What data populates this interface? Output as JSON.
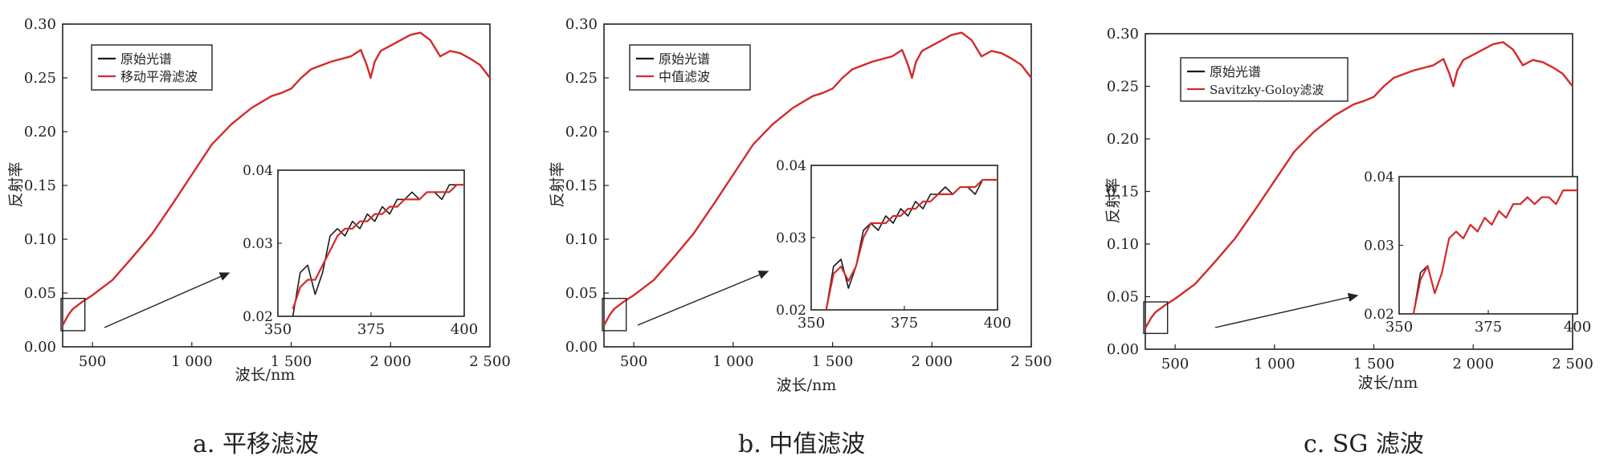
{
  "colors": {
    "original": "#1a1a1a",
    "filtered": "#d42a2a",
    "arrow": "#222222",
    "axis": "#222222"
  },
  "chart_data": [
    {
      "type": "line",
      "caption": "a. 平移滤波",
      "xlabel": "波长/nm",
      "ylabel": "反射率",
      "xlim": [
        350,
        2500
      ],
      "ylim": [
        0,
        0.3
      ],
      "xticks": [
        500,
        1000,
        1500,
        2000,
        2500
      ],
      "xtick_labels": [
        "500",
        "1 000",
        "1 500",
        "2 000",
        "2 500"
      ],
      "yticks": [
        0,
        0.05,
        0.1,
        0.15,
        0.2,
        0.25,
        0.3
      ],
      "ytick_labels": [
        "0.00",
        "0.05",
        "0.10",
        "0.15",
        "0.20",
        "0.25",
        "0.30"
      ],
      "legend": {
        "position": "top-left",
        "entries": [
          "原始光谱",
          "移动平滑滤波"
        ]
      },
      "series": [
        {
          "name": "原始光谱",
          "color": "#1a1a1a",
          "x": [
            350,
            380,
            400,
            450,
            500,
            600,
            700,
            800,
            900,
            1000,
            1100,
            1200,
            1300,
            1400,
            1450,
            1500,
            1550,
            1600,
            1700,
            1800,
            1850,
            1880,
            1900,
            1920,
            1950,
            2000,
            2100,
            2150,
            2200,
            2250,
            2300,
            2350,
            2400,
            2450,
            2500
          ],
          "y": [
            0.02,
            0.03,
            0.035,
            0.042,
            0.048,
            0.062,
            0.083,
            0.105,
            0.132,
            0.16,
            0.188,
            0.207,
            0.222,
            0.233,
            0.236,
            0.24,
            0.25,
            0.258,
            0.265,
            0.27,
            0.276,
            0.262,
            0.25,
            0.265,
            0.275,
            0.28,
            0.29,
            0.292,
            0.285,
            0.27,
            0.275,
            0.273,
            0.268,
            0.262,
            0.25
          ]
        },
        {
          "name": "移动平滑滤波",
          "color": "#d42a2a",
          "x": [
            350,
            380,
            400,
            450,
            500,
            600,
            700,
            800,
            900,
            1000,
            1100,
            1200,
            1300,
            1400,
            1450,
            1500,
            1550,
            1600,
            1700,
            1800,
            1850,
            1880,
            1900,
            1920,
            1950,
            2000,
            2100,
            2150,
            2200,
            2250,
            2300,
            2350,
            2400,
            2450,
            2500
          ],
          "y": [
            0.02,
            0.03,
            0.035,
            0.042,
            0.048,
            0.062,
            0.083,
            0.105,
            0.132,
            0.16,
            0.188,
            0.207,
            0.222,
            0.233,
            0.236,
            0.24,
            0.25,
            0.258,
            0.265,
            0.27,
            0.276,
            0.262,
            0.25,
            0.265,
            0.275,
            0.28,
            0.29,
            0.292,
            0.285,
            0.27,
            0.275,
            0.273,
            0.268,
            0.262,
            0.25
          ]
        }
      ],
      "inset": {
        "xlim": [
          350,
          400
        ],
        "ylim": [
          0.02,
          0.04
        ],
        "xticks": [
          350,
          375,
          400
        ],
        "yticks": [
          0.02,
          0.03,
          0.04
        ],
        "ytick_labels": [
          "0.02",
          "0.03",
          "0.04"
        ],
        "series": [
          {
            "name": "原始光谱",
            "color": "#1a1a1a",
            "x": [
              354,
              356,
              358,
              360,
              362,
              364,
              366,
              368,
              370,
              372,
              374,
              376,
              378,
              380,
              382,
              384,
              386,
              388,
              390,
              392,
              394,
              396,
              398,
              400
            ],
            "y": [
              0.02,
              0.026,
              0.027,
              0.023,
              0.026,
              0.031,
              0.032,
              0.031,
              0.033,
              0.032,
              0.034,
              0.033,
              0.035,
              0.034,
              0.036,
              0.036,
              0.037,
              0.036,
              0.037,
              0.037,
              0.036,
              0.038,
              0.038,
              0.038
            ]
          },
          {
            "name": "移动平滑滤波",
            "color": "#d42a2a",
            "x": [
              354,
              356,
              358,
              360,
              362,
              364,
              366,
              368,
              370,
              372,
              374,
              376,
              378,
              380,
              382,
              384,
              386,
              388,
              390,
              392,
              394,
              396,
              398,
              400
            ],
            "y": [
              0.021,
              0.024,
              0.025,
              0.025,
              0.027,
              0.029,
              0.031,
              0.032,
              0.032,
              0.033,
              0.033,
              0.034,
              0.034,
              0.035,
              0.035,
              0.036,
              0.036,
              0.036,
              0.037,
              0.037,
              0.037,
              0.037,
              0.038,
              0.038
            ]
          }
        ]
      }
    },
    {
      "type": "line",
      "caption": "b. 中值滤波",
      "xlabel": "波长/nm",
      "ylabel": "反射率",
      "xlim": [
        350,
        2500
      ],
      "ylim": [
        0,
        0.3
      ],
      "xticks": [
        500,
        1000,
        1500,
        2000,
        2500
      ],
      "xtick_labels": [
        "500",
        "1 000",
        "1 500",
        "2 000",
        "2 500"
      ],
      "yticks": [
        0,
        0.05,
        0.1,
        0.15,
        0.2,
        0.25,
        0.3
      ],
      "ytick_labels": [
        "0.00",
        "0.05",
        "0.10",
        "0.15",
        "0.20",
        "0.25",
        "0.30"
      ],
      "legend": {
        "position": "top-left",
        "entries": [
          "原始光谱",
          "中值滤波"
        ]
      },
      "series": [
        {
          "name": "原始光谱",
          "color": "#1a1a1a",
          "x": [
            350,
            380,
            400,
            450,
            500,
            600,
            700,
            800,
            900,
            1000,
            1100,
            1200,
            1300,
            1400,
            1450,
            1500,
            1550,
            1600,
            1700,
            1800,
            1850,
            1880,
            1900,
            1920,
            1950,
            2000,
            2100,
            2150,
            2200,
            2250,
            2300,
            2350,
            2400,
            2450,
            2500
          ],
          "y": [
            0.02,
            0.03,
            0.035,
            0.042,
            0.048,
            0.062,
            0.083,
            0.105,
            0.132,
            0.16,
            0.188,
            0.207,
            0.222,
            0.233,
            0.236,
            0.24,
            0.25,
            0.258,
            0.265,
            0.27,
            0.276,
            0.262,
            0.25,
            0.265,
            0.275,
            0.28,
            0.29,
            0.292,
            0.285,
            0.27,
            0.275,
            0.273,
            0.268,
            0.262,
            0.25
          ]
        },
        {
          "name": "中值滤波",
          "color": "#d42a2a",
          "x": [
            350,
            380,
            400,
            450,
            500,
            600,
            700,
            800,
            900,
            1000,
            1100,
            1200,
            1300,
            1400,
            1450,
            1500,
            1550,
            1600,
            1700,
            1800,
            1850,
            1880,
            1900,
            1920,
            1950,
            2000,
            2100,
            2150,
            2200,
            2250,
            2300,
            2350,
            2400,
            2450,
            2500
          ],
          "y": [
            0.02,
            0.03,
            0.035,
            0.042,
            0.048,
            0.062,
            0.083,
            0.105,
            0.132,
            0.16,
            0.188,
            0.207,
            0.222,
            0.233,
            0.236,
            0.24,
            0.25,
            0.258,
            0.265,
            0.27,
            0.276,
            0.262,
            0.25,
            0.265,
            0.275,
            0.28,
            0.29,
            0.292,
            0.285,
            0.27,
            0.275,
            0.273,
            0.268,
            0.262,
            0.25
          ]
        }
      ],
      "inset": {
        "xlim": [
          350,
          400
        ],
        "ylim": [
          0.02,
          0.04
        ],
        "xticks": [
          350,
          375,
          400
        ],
        "yticks": [
          0.02,
          0.03,
          0.04
        ],
        "ytick_labels": [
          "0.02",
          "0.03",
          "0.04"
        ],
        "series": [
          {
            "name": "原始光谱",
            "color": "#1a1a1a",
            "x": [
              354,
              356,
              358,
              360,
              362,
              364,
              366,
              368,
              370,
              372,
              374,
              376,
              378,
              380,
              382,
              384,
              386,
              388,
              390,
              392,
              394,
              396,
              398,
              400
            ],
            "y": [
              0.02,
              0.026,
              0.027,
              0.023,
              0.026,
              0.031,
              0.032,
              0.031,
              0.033,
              0.032,
              0.034,
              0.033,
              0.035,
              0.034,
              0.036,
              0.036,
              0.037,
              0.036,
              0.037,
              0.037,
              0.036,
              0.038,
              0.038,
              0.038
            ]
          },
          {
            "name": "中值滤波",
            "color": "#d42a2a",
            "x": [
              354,
              356,
              358,
              360,
              362,
              364,
              366,
              368,
              370,
              372,
              374,
              376,
              378,
              380,
              382,
              384,
              386,
              388,
              390,
              392,
              394,
              396,
              398,
              400
            ],
            "y": [
              0.02,
              0.025,
              0.026,
              0.024,
              0.026,
              0.03,
              0.032,
              0.032,
              0.032,
              0.033,
              0.033,
              0.034,
              0.034,
              0.035,
              0.035,
              0.036,
              0.036,
              0.036,
              0.037,
              0.037,
              0.037,
              0.038,
              0.038,
              0.038
            ]
          }
        ]
      }
    },
    {
      "type": "line",
      "caption": "c. SG 滤波",
      "xlabel": "波长/nm",
      "ylabel": "反射率",
      "xlim": [
        350,
        2500
      ],
      "ylim": [
        0,
        0.3
      ],
      "xticks": [
        500,
        1000,
        1500,
        2000,
        2500
      ],
      "xtick_labels": [
        "500",
        "1 000",
        "1 500",
        "2 000",
        "2 500"
      ],
      "yticks": [
        0,
        0.05,
        0.1,
        0.15,
        0.2,
        0.25,
        0.3
      ],
      "ytick_labels": [
        "0.00",
        "0.05",
        "0.10",
        "0.15",
        "0.20",
        "0.25",
        "0.30"
      ],
      "legend": {
        "position": "top-left",
        "entries": [
          "原始光谱",
          "Savitzky-Goloy滤波"
        ]
      },
      "series": [
        {
          "name": "原始光谱",
          "color": "#1a1a1a",
          "x": [
            350,
            380,
            400,
            450,
            500,
            600,
            700,
            800,
            900,
            1000,
            1100,
            1200,
            1300,
            1400,
            1450,
            1500,
            1550,
            1600,
            1700,
            1800,
            1850,
            1880,
            1900,
            1920,
            1950,
            2000,
            2100,
            2150,
            2200,
            2250,
            2300,
            2350,
            2400,
            2450,
            2500
          ],
          "y": [
            0.02,
            0.03,
            0.035,
            0.042,
            0.048,
            0.062,
            0.083,
            0.105,
            0.132,
            0.16,
            0.188,
            0.207,
            0.222,
            0.233,
            0.236,
            0.24,
            0.25,
            0.258,
            0.265,
            0.27,
            0.276,
            0.262,
            0.25,
            0.265,
            0.275,
            0.28,
            0.29,
            0.292,
            0.285,
            0.27,
            0.275,
            0.273,
            0.268,
            0.262,
            0.25
          ]
        },
        {
          "name": "Savitzky-Goloy滤波",
          "color": "#d42a2a",
          "x": [
            350,
            380,
            400,
            450,
            500,
            600,
            700,
            800,
            900,
            1000,
            1100,
            1200,
            1300,
            1400,
            1450,
            1500,
            1550,
            1600,
            1700,
            1800,
            1850,
            1880,
            1900,
            1920,
            1950,
            2000,
            2100,
            2150,
            2200,
            2250,
            2300,
            2350,
            2400,
            2450,
            2500
          ],
          "y": [
            0.02,
            0.03,
            0.035,
            0.042,
            0.048,
            0.062,
            0.083,
            0.105,
            0.132,
            0.16,
            0.188,
            0.207,
            0.222,
            0.233,
            0.236,
            0.24,
            0.25,
            0.258,
            0.265,
            0.27,
            0.276,
            0.262,
            0.25,
            0.265,
            0.275,
            0.28,
            0.29,
            0.292,
            0.285,
            0.27,
            0.275,
            0.273,
            0.268,
            0.262,
            0.25
          ]
        }
      ],
      "inset": {
        "xlim": [
          350,
          400
        ],
        "ylim": [
          0.02,
          0.04
        ],
        "xticks": [
          350,
          375,
          400
        ],
        "yticks": [
          0.02,
          0.03,
          0.04
        ],
        "ytick_labels": [
          "0.02",
          "0.03",
          "0.04"
        ],
        "series": [
          {
            "name": "原始光谱",
            "color": "#1a1a1a",
            "x": [
              354,
              356,
              358,
              360,
              362,
              364,
              366,
              368,
              370,
              372,
              374,
              376,
              378,
              380,
              382,
              384,
              386,
              388,
              390,
              392,
              394,
              396,
              398,
              400
            ],
            "y": [
              0.02,
              0.026,
              0.027,
              0.023,
              0.026,
              0.031,
              0.032,
              0.031,
              0.033,
              0.032,
              0.034,
              0.033,
              0.035,
              0.034,
              0.036,
              0.036,
              0.037,
              0.036,
              0.037,
              0.037,
              0.036,
              0.038,
              0.038,
              0.038
            ]
          },
          {
            "name": "Savitzky-Goloy滤波",
            "color": "#d42a2a",
            "x": [
              354,
              356,
              358,
              360,
              362,
              364,
              366,
              368,
              370,
              372,
              374,
              376,
              378,
              380,
              382,
              384,
              386,
              388,
              390,
              392,
              394,
              396,
              398,
              400
            ],
            "y": [
              0.02,
              0.025,
              0.027,
              0.023,
              0.026,
              0.031,
              0.032,
              0.031,
              0.033,
              0.032,
              0.034,
              0.033,
              0.035,
              0.034,
              0.036,
              0.036,
              0.037,
              0.036,
              0.037,
              0.037,
              0.036,
              0.038,
              0.038,
              0.038
            ]
          }
        ]
      }
    }
  ]
}
